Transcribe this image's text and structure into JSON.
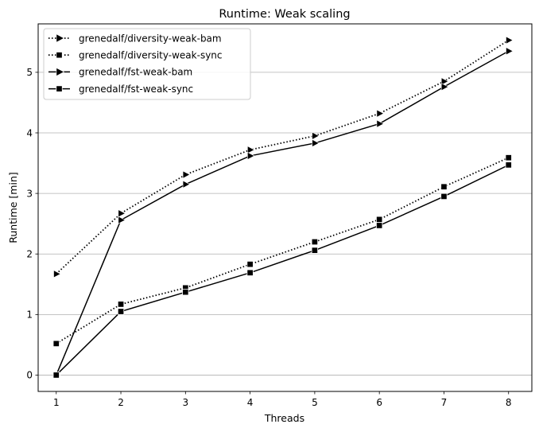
{
  "chart_data": {
    "type": "line",
    "title": "Runtime:  Weak scaling",
    "xlabel": "Threads",
    "ylabel": "Runtime  [min]",
    "x": [
      1,
      2,
      3,
      4,
      5,
      6,
      7,
      8
    ],
    "x_ticks": [
      "1",
      "2",
      "3",
      "4",
      "5",
      "6",
      "7",
      "8"
    ],
    "y_ticks": [
      "0",
      "1",
      "2",
      "3",
      "4",
      "5"
    ],
    "xlim": [
      0.72,
      8.36
    ],
    "ylim": [
      -0.27,
      5.8
    ],
    "grid": "y-major",
    "legend_position": "top-left",
    "series": [
      {
        "name": "grenedalf/diversity-weak-bam",
        "linestyle": "dotted",
        "marker": "triangle-right",
        "color": "#000000",
        "values": [
          1.67,
          2.67,
          3.31,
          3.72,
          3.95,
          4.32,
          4.85,
          5.53
        ]
      },
      {
        "name": "grenedalf/diversity-weak-sync",
        "linestyle": "dotted",
        "marker": "square",
        "color": "#000000",
        "values": [
          0.52,
          1.17,
          1.44,
          1.83,
          2.2,
          2.57,
          3.11,
          3.59
        ]
      },
      {
        "name": "grenedalf/fst-weak-bam",
        "linestyle": "solid",
        "marker": "triangle-right",
        "color": "#000000",
        "values": [
          0.0,
          2.56,
          3.15,
          3.62,
          3.83,
          4.15,
          4.76,
          5.35
        ]
      },
      {
        "name": "grenedalf/fst-weak-sync",
        "linestyle": "solid",
        "marker": "square",
        "color": "#000000",
        "values": [
          0.0,
          1.05,
          1.37,
          1.69,
          2.06,
          2.47,
          2.95,
          3.47
        ]
      }
    ]
  }
}
